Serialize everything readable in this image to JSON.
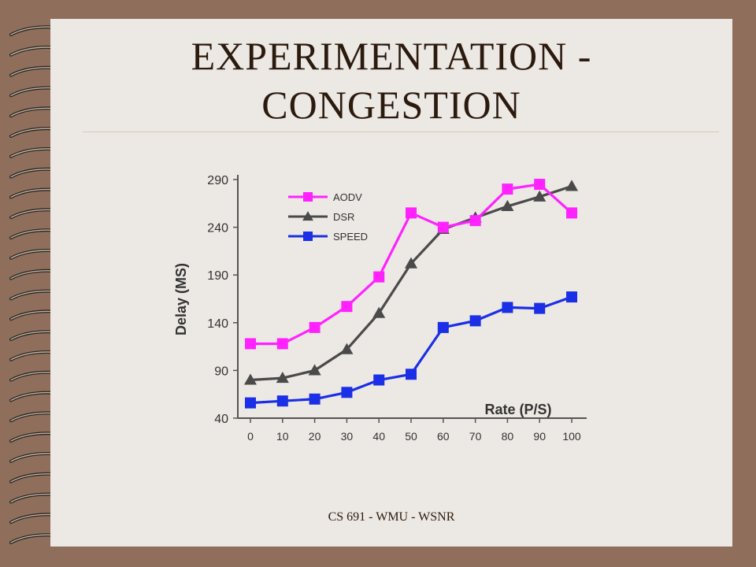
{
  "slide": {
    "title_line1": "EXPERIMENTATION -",
    "title_line2": "CONGESTION",
    "footer": "CS 691 - WMU - WSNR"
  },
  "colors": {
    "background": "#8f6f5c",
    "page": "#ece8e3",
    "title_text": "#2b1a0e"
  },
  "chart_data": {
    "type": "line",
    "xlabel": "Rate (P/S)",
    "ylabel": "Delay (MS)",
    "x": [
      0,
      10,
      20,
      30,
      40,
      50,
      60,
      70,
      80,
      90,
      100
    ],
    "ylim": [
      40,
      290
    ],
    "yticks": [
      40,
      90,
      140,
      190,
      240,
      290
    ],
    "grid": false,
    "legend_position": "top-left",
    "series": [
      {
        "name": "AODV",
        "color": "#ff22ff",
        "marker": "square",
        "values": [
          118,
          118,
          135,
          157,
          188,
          255,
          240,
          247,
          280,
          285,
          255
        ]
      },
      {
        "name": "DSR",
        "color": "#4a4a4a",
        "marker": "triangle",
        "values": [
          80,
          82,
          90,
          112,
          150,
          202,
          238,
          250,
          262,
          272,
          283
        ]
      },
      {
        "name": "SPEED",
        "color": "#1a2fe6",
        "marker": "square",
        "values": [
          56,
          58,
          60,
          67,
          80,
          86,
          135,
          142,
          156,
          155,
          167
        ]
      }
    ]
  }
}
